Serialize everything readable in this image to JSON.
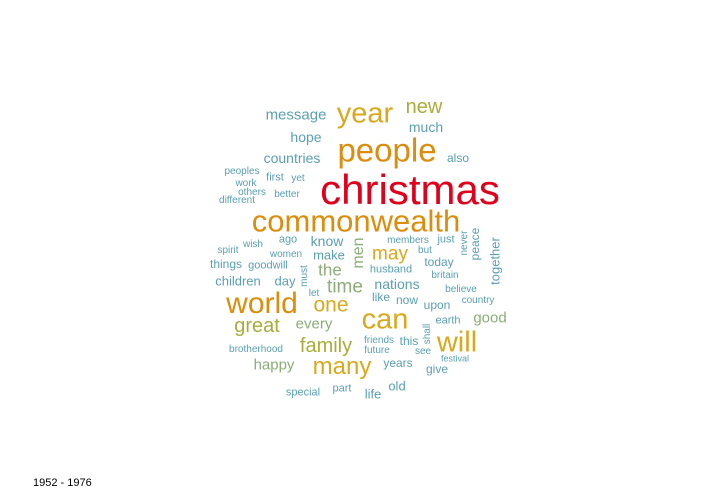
{
  "caption": "1952 - 1976",
  "palette": {
    "red": "#e0001b",
    "orange": "#dd8d0d",
    "gold": "#d9a81c",
    "olive": "#a8ad3a",
    "sage": "#8cad78",
    "teal": "#5b9fb0",
    "blue": "#4f9ac0"
  },
  "words": [
    {
      "text": "christmas",
      "color": "red",
      "rotated": false
    },
    {
      "text": "commonwealth",
      "color": "orange",
      "rotated": false
    },
    {
      "text": "people",
      "color": "orange",
      "rotated": false
    },
    {
      "text": "year",
      "color": "gold",
      "rotated": false
    },
    {
      "text": "new",
      "color": "olive",
      "rotated": false
    },
    {
      "text": "world",
      "color": "orange",
      "rotated": false
    },
    {
      "text": "can",
      "color": "gold",
      "rotated": false
    },
    {
      "text": "will",
      "color": "gold",
      "rotated": false
    },
    {
      "text": "many",
      "color": "gold",
      "rotated": false
    },
    {
      "text": "one",
      "color": "gold",
      "rotated": false
    },
    {
      "text": "may",
      "color": "gold",
      "rotated": false
    },
    {
      "text": "family",
      "color": "olive",
      "rotated": false
    },
    {
      "text": "great",
      "color": "olive",
      "rotated": false
    },
    {
      "text": "time",
      "color": "sage",
      "rotated": false
    },
    {
      "text": "the",
      "color": "sage",
      "rotated": false
    },
    {
      "text": "men",
      "color": "sage",
      "rotated": true
    },
    {
      "text": "every",
      "color": "sage",
      "rotated": false
    },
    {
      "text": "good",
      "color": "sage",
      "rotated": false
    },
    {
      "text": "happy",
      "color": "sage",
      "rotated": false
    },
    {
      "text": "message",
      "color": "teal",
      "rotated": false
    },
    {
      "text": "much",
      "color": "teal",
      "rotated": false
    },
    {
      "text": "hope",
      "color": "teal",
      "rotated": false
    },
    {
      "text": "countries",
      "color": "teal",
      "rotated": false
    },
    {
      "text": "also",
      "color": "teal",
      "rotated": false
    },
    {
      "text": "peoples",
      "color": "teal",
      "rotated": false
    },
    {
      "text": "first",
      "color": "teal",
      "rotated": false
    },
    {
      "text": "yet",
      "color": "teal",
      "rotated": false
    },
    {
      "text": "work",
      "color": "teal",
      "rotated": false
    },
    {
      "text": "others",
      "color": "teal",
      "rotated": false
    },
    {
      "text": "better",
      "color": "teal",
      "rotated": false
    },
    {
      "text": "different",
      "color": "teal",
      "rotated": false
    },
    {
      "text": "know",
      "color": "teal",
      "rotated": false
    },
    {
      "text": "ago",
      "color": "teal",
      "rotated": false
    },
    {
      "text": "members",
      "color": "teal",
      "rotated": false
    },
    {
      "text": "just",
      "color": "teal",
      "rotated": false
    },
    {
      "text": "but",
      "color": "teal",
      "rotated": false
    },
    {
      "text": "never",
      "color": "teal",
      "rotated": true
    },
    {
      "text": "peace",
      "color": "teal",
      "rotated": true
    },
    {
      "text": "together",
      "color": "teal",
      "rotated": true
    },
    {
      "text": "spirit",
      "color": "teal",
      "rotated": false
    },
    {
      "text": "wish",
      "color": "teal",
      "rotated": false
    },
    {
      "text": "women",
      "color": "teal",
      "rotated": false
    },
    {
      "text": "make",
      "color": "teal",
      "rotated": false
    },
    {
      "text": "today",
      "color": "teal",
      "rotated": false
    },
    {
      "text": "things",
      "color": "teal",
      "rotated": false
    },
    {
      "text": "goodwill",
      "color": "teal",
      "rotated": false
    },
    {
      "text": "must",
      "color": "teal",
      "rotated": true
    },
    {
      "text": "husband",
      "color": "teal",
      "rotated": false
    },
    {
      "text": "britain",
      "color": "teal",
      "rotated": false
    },
    {
      "text": "children",
      "color": "teal",
      "rotated": false
    },
    {
      "text": "day",
      "color": "teal",
      "rotated": false
    },
    {
      "text": "nations",
      "color": "teal",
      "rotated": false
    },
    {
      "text": "believe",
      "color": "teal",
      "rotated": false
    },
    {
      "text": "let",
      "color": "teal",
      "rotated": false
    },
    {
      "text": "like",
      "color": "teal",
      "rotated": false
    },
    {
      "text": "now",
      "color": "teal",
      "rotated": false
    },
    {
      "text": "upon",
      "color": "teal",
      "rotated": false
    },
    {
      "text": "country",
      "color": "teal",
      "rotated": false
    },
    {
      "text": "earth",
      "color": "teal",
      "rotated": false
    },
    {
      "text": "shall",
      "color": "teal",
      "rotated": true
    },
    {
      "text": "brotherhood",
      "color": "teal",
      "rotated": false
    },
    {
      "text": "friends",
      "color": "teal",
      "rotated": false
    },
    {
      "text": "this",
      "color": "teal",
      "rotated": false
    },
    {
      "text": "future",
      "color": "teal",
      "rotated": false
    },
    {
      "text": "see",
      "color": "teal",
      "rotated": false
    },
    {
      "text": "festival",
      "color": "teal",
      "rotated": false
    },
    {
      "text": "years",
      "color": "teal",
      "rotated": false
    },
    {
      "text": "give",
      "color": "teal",
      "rotated": false
    },
    {
      "text": "old",
      "color": "teal",
      "rotated": false
    },
    {
      "text": "special",
      "color": "teal",
      "rotated": false
    },
    {
      "text": "part",
      "color": "teal",
      "rotated": false
    },
    {
      "text": "life",
      "color": "teal",
      "rotated": false
    }
  ]
}
